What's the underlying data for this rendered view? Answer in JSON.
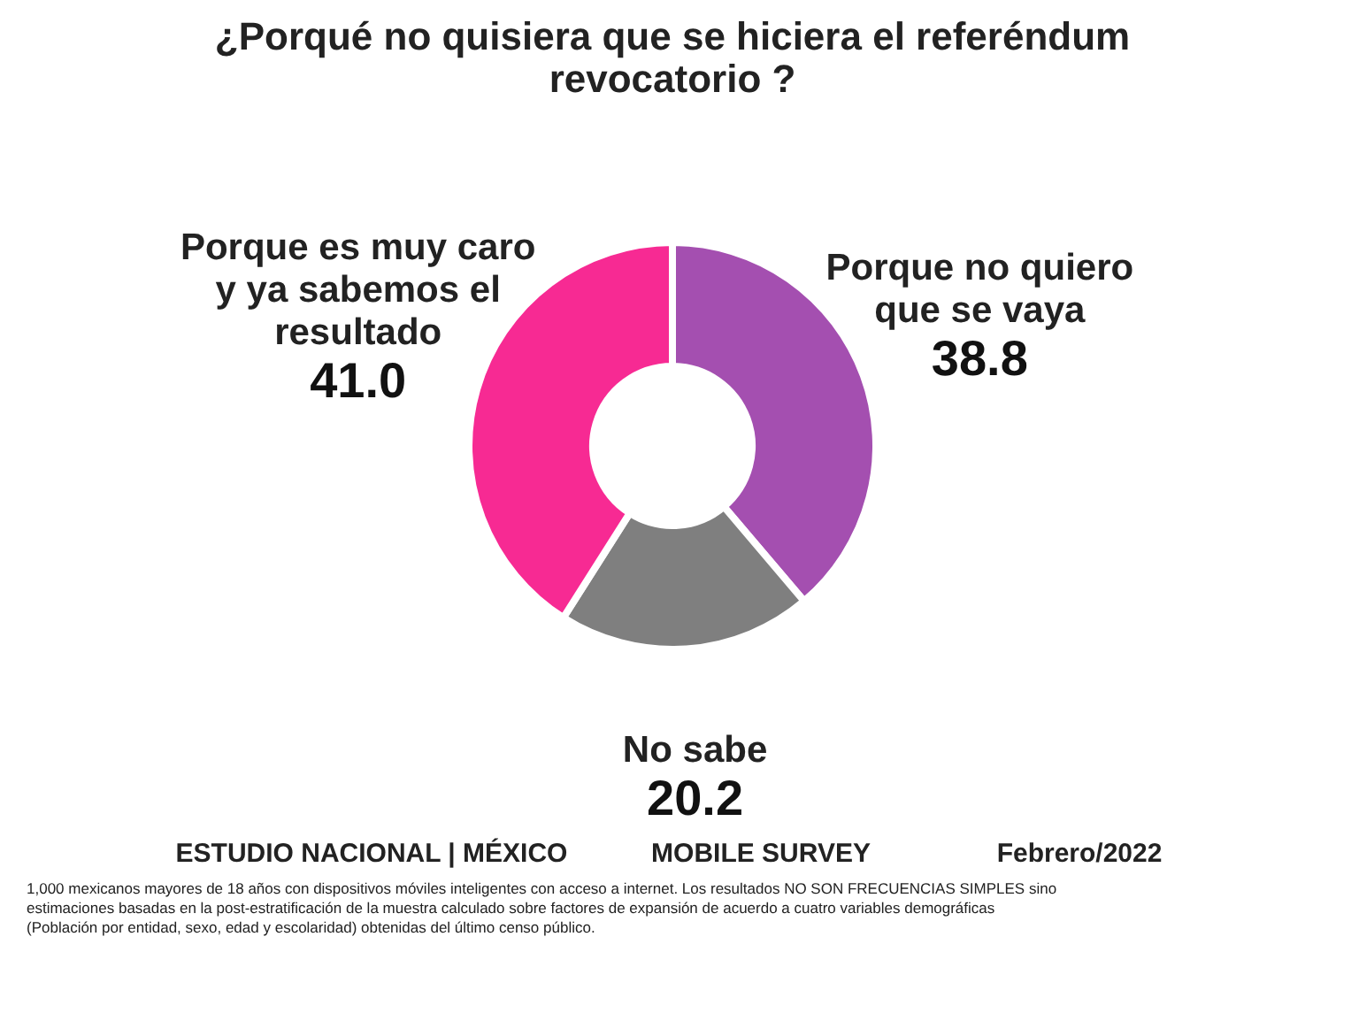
{
  "chart_data": {
    "type": "donut",
    "title": "¿Porqué no quisiera que se hiciera el referéndum revocatorio ?",
    "categories": [
      "Porque no quiero que se vaya",
      "No sabe",
      "Porque es muy caro y ya sabemos el resultado"
    ],
    "values": [
      38.8,
      20.2,
      41.0
    ],
    "colors": [
      "#a44fb0",
      "#7f7f7f",
      "#f72a93"
    ],
    "value_labels": [
      "38.8",
      "20.2",
      "41.0"
    ],
    "legend": false,
    "annotations": [
      "ESTUDIO NACIONAL | MÉXICO",
      "MOBILE SURVEY",
      "Febrero/2022",
      "1,000 mexicanos mayores de 18 años con dispositivos móviles inteligentes con acceso a internet. Los resultados NO SON FRECUENCIAS SIMPLES sino estimaciones basadas en la post-estratificación de la muestra calculado sobre factores de expansión de acuerdo a cuatro variables demográficas (Población por entidad, sexo, edad y escolaridad) obtenidas del último censo público."
    ]
  }
}
